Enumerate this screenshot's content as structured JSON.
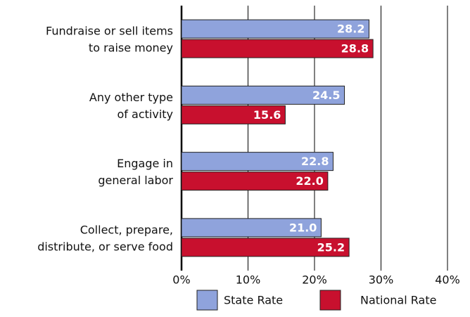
{
  "chart_data": {
    "type": "hbar",
    "categories": [
      [
        "Fundraise or sell items",
        "to raise money"
      ],
      [
        "Any other type",
        "of activity"
      ],
      [
        "Engage in",
        "general labor"
      ],
      [
        "Collect, prepare,",
        "distribute, or serve food"
      ]
    ],
    "series": [
      {
        "name": "State Rate",
        "color": "#8fa3dc",
        "values": [
          28.2,
          24.5,
          22.8,
          21.0
        ],
        "value_labels": [
          "28.2",
          "24.5",
          "22.8",
          "21.0"
        ]
      },
      {
        "name": "National Rate",
        "color": "#c8102e",
        "values": [
          28.8,
          15.6,
          22.0,
          25.2
        ],
        "value_labels": [
          "28.8",
          "15.6",
          "22.0",
          "25.2"
        ]
      }
    ],
    "xlim": [
      0,
      40
    ],
    "xticks": [
      {
        "value": 0,
        "label": "0%"
      },
      {
        "value": 10,
        "label": "10%"
      },
      {
        "value": 20,
        "label": "20%"
      },
      {
        "value": 30,
        "label": "30%"
      },
      {
        "value": 40,
        "label": "40%"
      }
    ],
    "grid": true,
    "legend": "bottom"
  }
}
